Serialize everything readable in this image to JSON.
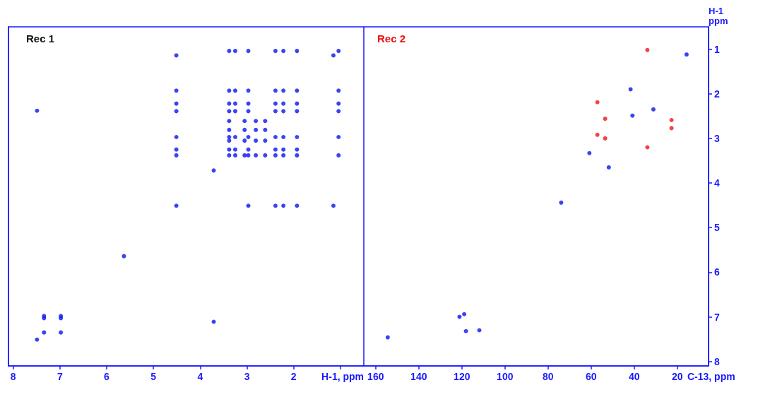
{
  "chart_data": [
    {
      "type": "scatter",
      "title": "Rec 1",
      "xlabel": "H-1, ppm",
      "xlim": [
        8.1,
        0.5
      ],
      "ylim": [
        8.1,
        0.5
      ],
      "xticks": [
        8,
        7,
        6,
        5,
        4,
        3,
        2,
        {
          "value": 1,
          "label": null
        }
      ],
      "yticks": [
        1,
        2,
        3,
        4,
        5,
        6,
        7,
        8
      ],
      "tick_labels": "x",
      "marker": "circle",
      "series": [
        {
          "color": "#0a14f0",
          "x": [
            3.38,
            3.25,
            2.97,
            2.39,
            2.22,
            1.93,
            1.04,
            3.38,
            3.25,
            2.97,
            2.39,
            2.22,
            1.93,
            1.04,
            4.51,
            3.38,
            3.25,
            2.97,
            2.39,
            2.22,
            1.93,
            1.04,
            4.51,
            3.38,
            3.25,
            2.97,
            2.39,
            2.22,
            1.93,
            1.04,
            4.51,
            3.38,
            3.05,
            2.81,
            2.61,
            3.38,
            3.05,
            2.81,
            2.61,
            3.38,
            3.25,
            2.97,
            2.39,
            2.22,
            1.93,
            1.04,
            4.51,
            3.38,
            3.05,
            2.81,
            2.61,
            3.38,
            3.25,
            2.97,
            2.39,
            2.22,
            1.93,
            4.51,
            3.38,
            3.25,
            3.05,
            2.97,
            2.81,
            2.61,
            2.39,
            2.22,
            1.93,
            1.04,
            4.51,
            4.51,
            2.97,
            2.39,
            2.22,
            1.93,
            1.15,
            4.51,
            1.15,
            7.49,
            3.71,
            5.63,
            3.71,
            7.34,
            7.34,
            6.98,
            6.98,
            7.34,
            6.98,
            7.49
          ],
          "values": [
            1.04,
            1.04,
            1.04,
            1.04,
            1.04,
            1.04,
            1.04,
            1.93,
            1.93,
            1.93,
            1.93,
            1.93,
            1.93,
            1.93,
            1.93,
            2.22,
            2.22,
            2.22,
            2.22,
            2.22,
            2.22,
            2.22,
            2.22,
            2.39,
            2.39,
            2.39,
            2.39,
            2.39,
            2.39,
            2.39,
            2.39,
            2.61,
            2.61,
            2.61,
            2.61,
            2.81,
            2.81,
            2.81,
            2.81,
            2.97,
            2.97,
            2.97,
            2.97,
            2.97,
            2.97,
            2.97,
            2.97,
            3.05,
            3.05,
            3.05,
            3.05,
            3.25,
            3.25,
            3.25,
            3.25,
            3.25,
            3.25,
            3.25,
            3.38,
            3.38,
            3.38,
            3.38,
            3.38,
            3.38,
            3.38,
            3.38,
            3.38,
            3.38,
            3.38,
            4.51,
            4.51,
            4.51,
            4.51,
            4.51,
            4.51,
            1.14,
            1.14,
            2.38,
            3.72,
            5.64,
            7.11,
            6.98,
            7.03,
            6.98,
            7.03,
            7.35,
            7.35,
            7.51
          ]
        }
      ]
    },
    {
      "type": "scatter",
      "title": "Rec 2",
      "xlabel": "C-13, ppm",
      "ylabel": "H-1 ppm",
      "xlim": [
        165.5,
        5.5
      ],
      "ylim": [
        8.1,
        0.5
      ],
      "xticks": [
        160,
        140,
        120,
        100,
        80,
        60,
        40,
        20
      ],
      "yticks": [
        1,
        2,
        3,
        4,
        5,
        6,
        7,
        8
      ],
      "marker": "circle",
      "series": [
        {
          "color": "#0a14f0",
          "x": [
            15.7,
            41.7,
            31.1,
            40.8,
            60.8,
            51.8,
            73.9,
            121.1,
            118.9,
            118.1,
            111.9,
            154.4
          ],
          "values": [
            1.12,
            1.9,
            2.35,
            2.49,
            3.33,
            3.65,
            4.44,
            7.0,
            6.94,
            7.32,
            7.3,
            7.46
          ]
        },
        {
          "color": "#f01414",
          "x": [
            33.9,
            57.1,
            53.5,
            57.1,
            53.5,
            33.9,
            22.7,
            22.7
          ],
          "values": [
            1.02,
            2.19,
            2.56,
            2.92,
            3.0,
            3.2,
            2.59,
            2.77
          ]
        }
      ]
    }
  ]
}
